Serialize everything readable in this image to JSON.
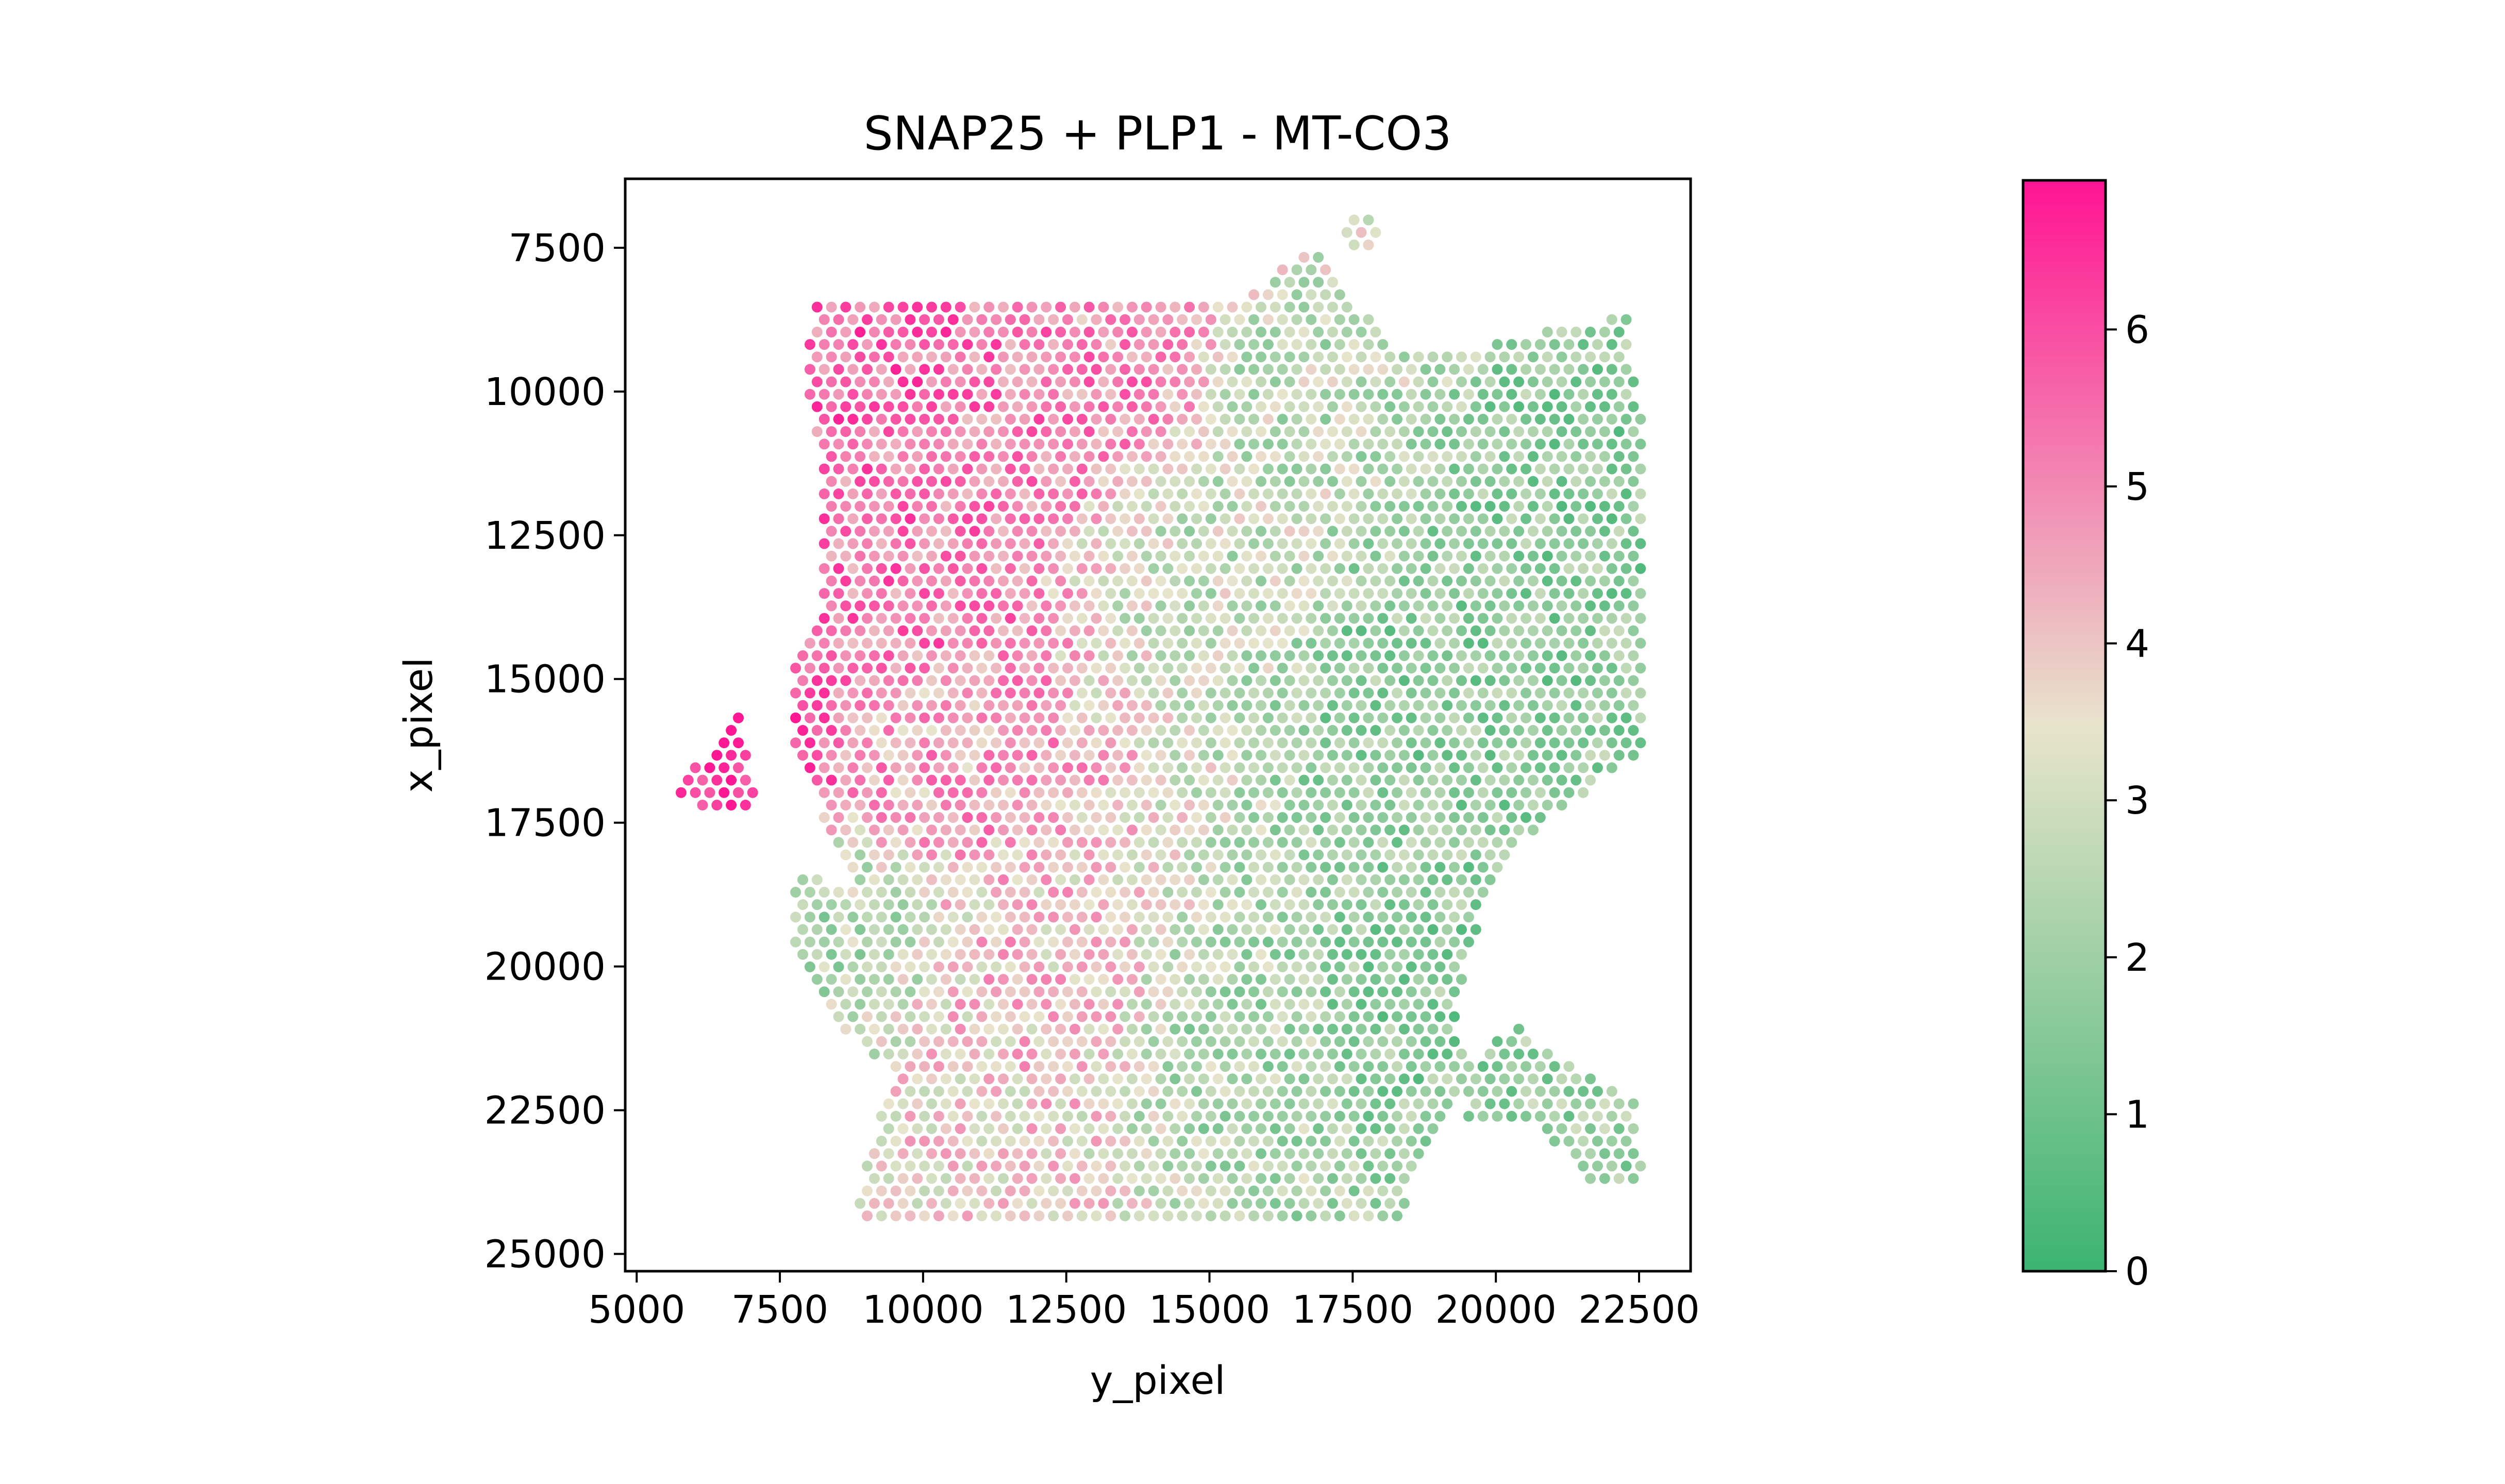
{
  "chart_data": {
    "type": "scatter",
    "title": "SNAP25 + PLP1 - MT-CO3",
    "xlabel": "y_pixel",
    "ylabel": "x_pixel",
    "xlim": [
      4800,
      23400
    ],
    "ylim": [
      25300,
      6300
    ],
    "y_inverted": true,
    "xticks": [
      5000,
      7500,
      10000,
      12500,
      15000,
      17500,
      20000,
      22500
    ],
    "xtick_labels": [
      "5000",
      "7500",
      "10000",
      "12500",
      "15000",
      "17500",
      "20000",
      "22500"
    ],
    "yticks": [
      7500,
      10000,
      12500,
      15000,
      17500,
      20000,
      22500,
      25000
    ],
    "ytick_labels": [
      "7500",
      "10000",
      "12500",
      "15000",
      "17500",
      "20000",
      "22500",
      "25000"
    ],
    "grid": false,
    "spot_spacing": 250,
    "colormap": {
      "vmin": 0,
      "vmax": 6.95,
      "stops": [
        "#3cb371",
        "#e8e4cc",
        "#ff1493"
      ],
      "ticks": [
        0,
        1,
        2,
        3,
        4,
        5,
        6
      ],
      "tick_labels": [
        "0",
        "1",
        "2",
        "3",
        "4",
        "5",
        "6"
      ]
    },
    "regions": [
      {
        "name": "main-tissue",
        "polygon": [
          [
            8150,
            8500
          ],
          [
            15600,
            8350
          ],
          [
            16800,
            7500
          ],
          [
            17400,
            8400
          ],
          [
            18500,
            9400
          ],
          [
            19500,
            9300
          ],
          [
            20500,
            9000
          ],
          [
            22300,
            8700
          ],
          [
            22600,
            11000
          ],
          [
            22600,
            16300
          ],
          [
            21500,
            17000
          ],
          [
            20500,
            17800
          ],
          [
            19800,
            19000
          ],
          [
            19300,
            20800
          ],
          [
            19600,
            21700
          ],
          [
            19000,
            22800
          ],
          [
            18300,
            24400
          ],
          [
            8800,
            24500
          ],
          [
            9100,
            23000
          ],
          [
            9500,
            21800
          ],
          [
            8400,
            21000
          ],
          [
            7800,
            20000
          ],
          [
            7700,
            18300
          ],
          [
            8700,
            18600
          ],
          [
            8300,
            17500
          ],
          [
            7700,
            16200
          ],
          [
            7700,
            14700
          ],
          [
            8200,
            14000
          ],
          [
            8200,
            11000
          ],
          [
            7900,
            9700
          ]
        ]
      },
      {
        "name": "left-protrusion",
        "polygon": [
          [
            5600,
            17100
          ],
          [
            6800,
            15500
          ],
          [
            7100,
            17200
          ],
          [
            6500,
            17300
          ]
        ]
      },
      {
        "name": "lower-right-arm",
        "polygon": [
          [
            19600,
            21700
          ],
          [
            20300,
            21000
          ],
          [
            21200,
            21700
          ],
          [
            22400,
            22300
          ],
          [
            22600,
            23800
          ],
          [
            21700,
            23800
          ],
          [
            20600,
            22700
          ],
          [
            19300,
            22800
          ]
        ]
      },
      {
        "name": "top-cap",
        "polygon": [
          [
            17350,
            6900
          ],
          [
            17950,
            6900
          ],
          [
            17950,
            7600
          ],
          [
            17350,
            7600
          ]
        ]
      }
    ],
    "expression_field": {
      "description_values": "value gradient: high (5-7) in upper-left and left protrusion, mid (3-4) in centre-left column, low (1-2) on the right side",
      "anchors": [
        {
          "x": 9500,
          "y": 9500,
          "value": 5.6
        },
        {
          "x": 11500,
          "y": 10000,
          "value": 5.2
        },
        {
          "x": 13500,
          "y": 9500,
          "value": 4.9
        },
        {
          "x": 10000,
          "y": 13000,
          "value": 5.3
        },
        {
          "x": 6500,
          "y": 16500,
          "value": 6.6
        },
        {
          "x": 10500,
          "y": 16500,
          "value": 4.6
        },
        {
          "x": 12000,
          "y": 20500,
          "value": 4.1
        },
        {
          "x": 11000,
          "y": 23500,
          "value": 3.8
        },
        {
          "x": 15000,
          "y": 13000,
          "value": 2.8
        },
        {
          "x": 16500,
          "y": 10000,
          "value": 2.6
        },
        {
          "x": 15500,
          "y": 21500,
          "value": 2.3
        },
        {
          "x": 18500,
          "y": 15000,
          "value": 1.7
        },
        {
          "x": 21500,
          "y": 11500,
          "value": 1.6
        },
        {
          "x": 21500,
          "y": 15500,
          "value": 1.7
        },
        {
          "x": 18500,
          "y": 20500,
          "value": 1.6
        },
        {
          "x": 21500,
          "y": 22600,
          "value": 1.9
        },
        {
          "x": 8300,
          "y": 19500,
          "value": 2.4
        }
      ]
    }
  }
}
